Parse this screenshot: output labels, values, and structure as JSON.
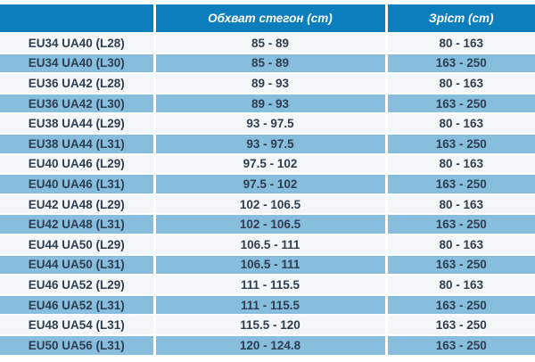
{
  "colors": {
    "header_bg": "#0d7ebd",
    "row_blue": "#87bedd",
    "row_white": "#f4f7f8",
    "text_dark": "#2e3d4f",
    "header_text": "#ffffff",
    "separator": "#ffffff"
  },
  "chart_data": {
    "type": "table",
    "title": "",
    "columns": [
      "",
      "Обхват стегон (cm)",
      "Зріст (cm)"
    ],
    "striping": "rows alternate white and light blue, header solid blue",
    "rows": [
      [
        "EU34 UA40 (L28)",
        "85 - 89",
        "80 - 163"
      ],
      [
        "EU34 UA40 (L30)",
        "85 - 89",
        "163 - 250"
      ],
      [
        "EU36 UA42 (L28)",
        "89 - 93",
        "80 - 163"
      ],
      [
        "EU36 UA42 (L30)",
        "89 - 93",
        "163 - 250"
      ],
      [
        "EU38 UA44 (L29)",
        "93 - 97.5",
        "80 - 163"
      ],
      [
        "EU38 UA44 (L31)",
        "93 - 97.5",
        "163 - 250"
      ],
      [
        "EU40 UA46 (L29)",
        "97.5 - 102",
        "80 - 163"
      ],
      [
        "EU40 UA46 (L31)",
        "97.5 - 102",
        "163 - 250"
      ],
      [
        "EU42 UA48 (L29)",
        "102 - 106.5",
        "80 - 163"
      ],
      [
        "EU42 UA48 (L31)",
        "102 - 106.5",
        "163 - 250"
      ],
      [
        "EU44 UA50 (L29)",
        "106.5 - 111",
        "80 - 163"
      ],
      [
        "EU44 UA50 (L31)",
        "106.5 - 111",
        "163 - 250"
      ],
      [
        "EU46 UA52 (L29)",
        "111 - 115.5",
        "80 - 163"
      ],
      [
        "EU46 UA52 (L31)",
        "111 - 115.5",
        "163 - 250"
      ],
      [
        "EU48 UA54 (L31)",
        "115.5 - 120",
        "163 - 250"
      ],
      [
        "EU50 UA56 (L31)",
        "120 - 124.8",
        "163 - 250"
      ]
    ]
  }
}
